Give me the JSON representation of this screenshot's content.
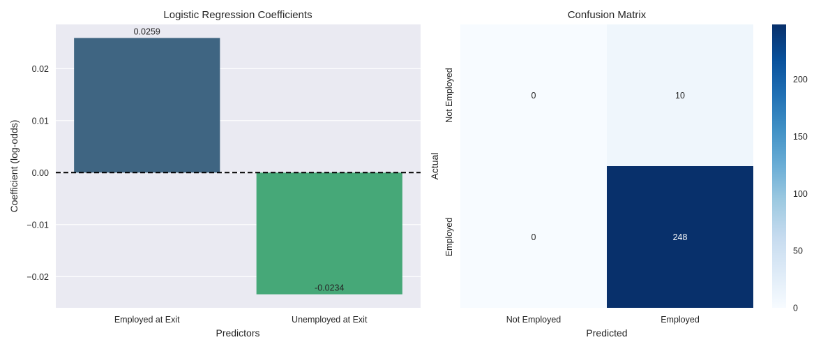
{
  "chart_data": [
    {
      "type": "bar",
      "title": "Logistic Regression Coefficients",
      "xlabel": "Predictors",
      "ylabel": "Coefficient (log-odds)",
      "categories": [
        "Employed at Exit",
        "Unemployed at Exit"
      ],
      "values": [
        0.0259,
        -0.0234
      ],
      "value_labels": [
        "0.0259",
        "-0.0234"
      ],
      "colors": [
        "#3f6582",
        "#46a878"
      ],
      "ylim": [
        -0.026,
        0.0285
      ],
      "yticks": [
        -0.02,
        -0.01,
        0.0,
        0.01,
        0.02
      ],
      "ytick_labels": [
        "−0.02",
        "−0.01",
        "0.00",
        "0.01",
        "0.02"
      ],
      "reference_line": 0,
      "grid": true,
      "background": "#eaeaf2"
    },
    {
      "type": "heatmap",
      "title": "Confusion Matrix",
      "xlabel": "Predicted",
      "ylabel": "Actual",
      "x_categories": [
        "Not Employed",
        "Employed"
      ],
      "y_categories": [
        "Not Employed",
        "Employed"
      ],
      "values": [
        [
          0,
          10
        ],
        [
          0,
          248
        ]
      ],
      "colormap": "Blues",
      "colorbar": {
        "min": 0,
        "max": 248,
        "ticks": [
          0,
          50,
          100,
          150,
          200
        ],
        "tick_labels": [
          "0",
          "50",
          "100",
          "150",
          "200"
        ]
      }
    }
  ]
}
